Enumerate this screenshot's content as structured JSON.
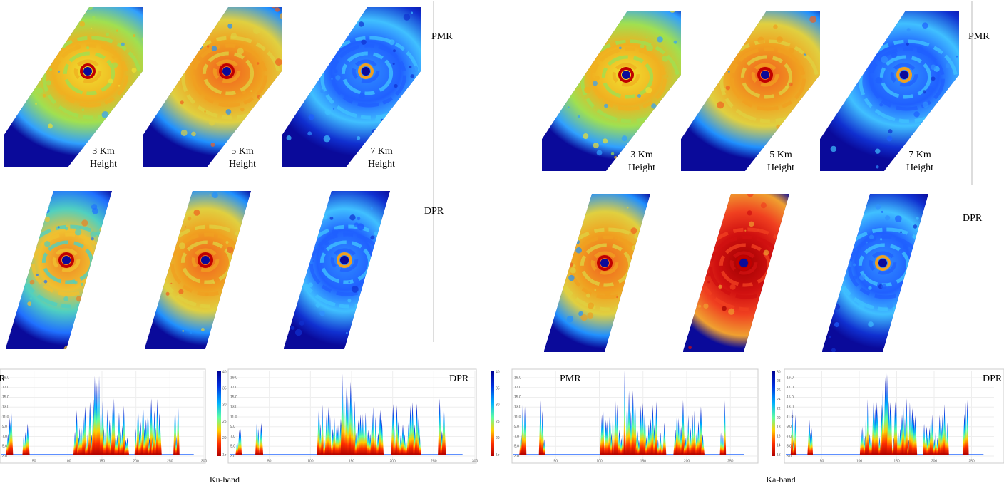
{
  "figures": [
    {
      "caption": "Ku-band",
      "swath_rows": [
        {
          "label": "PMR",
          "height_labels": [
            {
              "lines": [
                "3 Km",
                "Height"
              ]
            },
            {
              "lines": [
                "5 Km",
                "Height"
              ]
            },
            {
              "lines": [
                "7 Km",
                "Height"
              ]
            }
          ]
        },
        {
          "label": "DPR"
        }
      ],
      "profiles": [
        {
          "label": "PMR",
          "y_ticks": [
            "3.0",
            "5.0",
            "7.0",
            "9.0",
            "11.0",
            "13.0",
            "15.0",
            "17.0",
            "19.0"
          ],
          "x_ticks": [
            "50",
            "100",
            "150",
            "200",
            "250",
            "300"
          ],
          "colorbar_ticks": [
            "15",
            "20",
            "25",
            "30",
            "35",
            "40"
          ]
        },
        {
          "label": "DPR",
          "y_ticks": [
            "3.0",
            "5.0",
            "7.0",
            "9.0",
            "11.0",
            "13.0",
            "15.0",
            "17.0",
            "19.0"
          ],
          "x_ticks": [
            "50",
            "100",
            "150",
            "200",
            "250",
            "300"
          ],
          "colorbar_ticks": [
            "15",
            "20",
            "25",
            "30",
            "35",
            "40"
          ]
        }
      ]
    },
    {
      "caption": "Ka-band",
      "swath_rows": [
        {
          "label": "PMR",
          "height_labels": [
            {
              "lines": [
                "3 Km",
                "Height"
              ]
            },
            {
              "lines": [
                "5 Km",
                "Height"
              ]
            },
            {
              "lines": [
                "7 Km",
                "Height"
              ]
            }
          ]
        },
        {
          "label": "DPR"
        }
      ],
      "profiles": [
        {
          "label": "PMR",
          "y_ticks": [
            "3.0",
            "5.0",
            "7.0",
            "9.0",
            "11.0",
            "13.0",
            "15.0",
            "17.0",
            "19.0"
          ],
          "x_ticks": [
            "50",
            "100",
            "150",
            "200",
            "250"
          ],
          "colorbar_ticks": [
            "12",
            "14",
            "16",
            "18",
            "20",
            "22",
            "24",
            "26",
            "28",
            "30"
          ]
        },
        {
          "label": "DPR",
          "y_ticks": [
            "3.0",
            "5.0",
            "7.0",
            "9.0",
            "11.0",
            "13.0",
            "15.0",
            "17.0",
            "19.0"
          ],
          "x_ticks": [
            "50",
            "100",
            "150",
            "200",
            "250"
          ],
          "colorbar_ticks": [
            "12",
            "14",
            "16",
            "18",
            "20",
            "22",
            "24",
            "26",
            "28",
            "30"
          ]
        }
      ]
    }
  ]
}
